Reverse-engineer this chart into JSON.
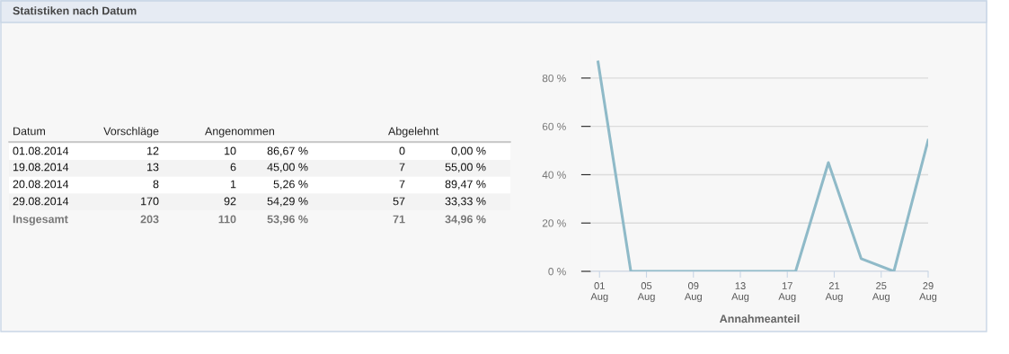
{
  "chart_data": [
    {
      "type": "other",
      "title": "Statistiken nach Datum",
      "categories": [
        "Datum",
        "Vorschläge",
        "Angenommen",
        "Abgelehnt"
      ],
      "annotations": [
        "01.08.2014",
        "12",
        "10",
        "86,67 %",
        "0",
        "0,00 %",
        "19.08.2014",
        "13",
        "6",
        "45,00 %",
        "7",
        "55,00 %",
        "20.08.2014",
        "8",
        "1",
        "5,26 %",
        "7",
        "89,47 %",
        "29.08.2014",
        "170",
        "92",
        "54,29 %",
        "57",
        "33,33 %",
        "Insgesamt",
        "203",
        "110",
        "53,96 %",
        "71",
        "34,96 %"
      ]
    },
    {
      "type": "line",
      "xlabel": "Annahmeanteil",
      "x": [
        "2014-07-31T21:00",
        "2014-08-03T16:00",
        "2014-08-06T12:00",
        "2014-08-09T07:00",
        "2014-08-12T02:00",
        "2014-08-14T22:00",
        "2014-08-17T17:00",
        "2014-08-20T12:00",
        "2014-08-23T07:00",
        "2014-08-26T02:00",
        "2014-08-29T00:00"
      ],
      "series": [
        {
          "color": "#8fbac8",
          "values": [
            86.67,
            0,
            0,
            0,
            0,
            0,
            0,
            45,
            5.26,
            0,
            54.29
          ]
        }
      ],
      "xlim": [
        "2014-07-31T07:00",
        "2014-08-29T00:00"
      ],
      "xticks": [
        {
          "value": "2014-08-01",
          "label": "01\nAug"
        },
        {
          "value": "2014-08-05",
          "label": "05\nAug"
        },
        {
          "value": "2014-08-09",
          "label": "09\nAug"
        },
        {
          "value": "2014-08-13",
          "label": "13\nAug"
        },
        {
          "value": "2014-08-17",
          "label": "17\nAug"
        },
        {
          "value": "2014-08-21",
          "label": "21\nAug"
        },
        {
          "value": "2014-08-25",
          "label": "25\nAug"
        },
        {
          "value": "2014-08-29",
          "label": "29\nAug"
        }
      ],
      "ylim": [
        0,
        90
      ],
      "yticks": [
        {
          "value": 0,
          "label": "0 %"
        },
        {
          "value": 20,
          "label": "20 %"
        },
        {
          "value": 40,
          "label": "40 %"
        },
        {
          "value": 60,
          "label": "60 %"
        },
        {
          "value": 80,
          "label": "80 %"
        }
      ],
      "grid": "y",
      "marker": "none",
      "line_style": "solid"
    }
  ]
}
